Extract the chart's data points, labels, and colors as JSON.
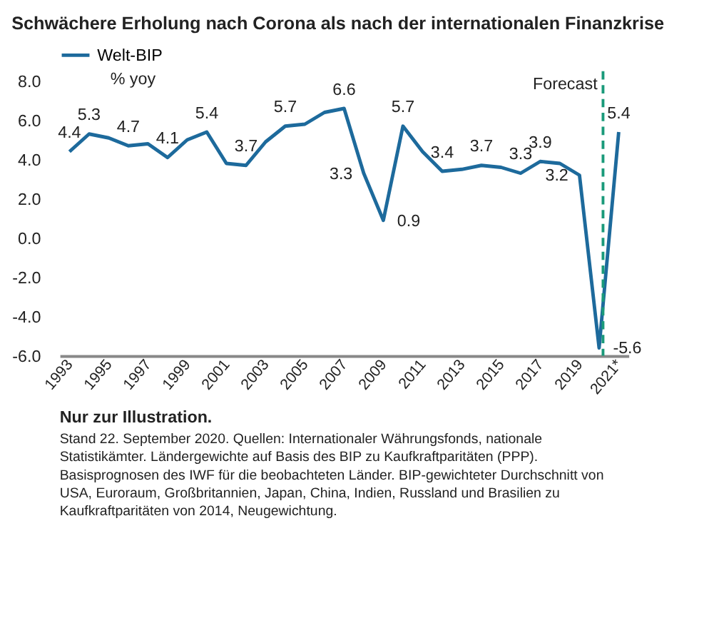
{
  "chart_data": {
    "type": "line",
    "title": "Schwächere Erholung nach Corona als nach der internationalen Finanzkrise",
    "ylabel": "% yoy",
    "x": [
      1993,
      1994,
      1995,
      1996,
      1997,
      1998,
      1999,
      2000,
      2001,
      2002,
      2003,
      2004,
      2005,
      2006,
      2007,
      2008,
      2009,
      2010,
      2011,
      2012,
      2013,
      2014,
      2015,
      2016,
      2017,
      2018,
      2019,
      2020,
      2021
    ],
    "series": [
      {
        "name": "Welt-BIP",
        "color": "#1d6a9c",
        "values": [
          4.4,
          5.3,
          5.1,
          4.7,
          4.8,
          4.1,
          5.0,
          5.4,
          3.8,
          3.7,
          4.9,
          5.7,
          5.8,
          6.4,
          6.6,
          3.3,
          0.9,
          5.7,
          4.4,
          3.4,
          3.5,
          3.7,
          3.6,
          3.3,
          3.9,
          3.8,
          3.2,
          -5.6,
          5.4
        ],
        "value_labels": [
          "4.4",
          "5.3",
          null,
          "4.7",
          null,
          "4.1",
          null,
          "5.4",
          null,
          "3.7",
          null,
          "5.7",
          null,
          null,
          "6.6",
          "3.3",
          "0.9",
          "5.7",
          null,
          "3.4",
          null,
          "3.7",
          null,
          "3.3",
          "3.9",
          null,
          "3.2",
          "-5.6",
          "5.4"
        ]
      }
    ],
    "xlim": [
      1992.5,
      2021.5
    ],
    "xticks": [
      1993,
      1995,
      1997,
      1999,
      2001,
      2003,
      2005,
      2007,
      2009,
      2011,
      2013,
      2015,
      2017,
      2019,
      {
        "value": 2021,
        "label": "2021*"
      }
    ],
    "ylim": [
      -6,
      8.5
    ],
    "yticks": [
      {
        "value": -6,
        "label": "-6.0"
      },
      {
        "value": -4,
        "label": "-4.0"
      },
      {
        "value": -2,
        "label": "-2.0"
      },
      {
        "value": 0,
        "label": "0.0"
      },
      {
        "value": 2,
        "label": "2.0"
      },
      {
        "value": 4,
        "label": "4.0"
      },
      {
        "value": 6,
        "label": "6.0"
      },
      {
        "value": 8,
        "label": "8.0"
      }
    ],
    "ref_lines": [
      {
        "axis": "x",
        "value": 2020.2,
        "label": "Forecast",
        "color": "#1a9a7a",
        "line_style": "dashed"
      }
    ],
    "grid": false,
    "legend": "top left",
    "marker": "none",
    "line_style": "solid",
    "annotations": [
      "Nur zur Illustration.",
      "Stand 22. September 2020. Quellen: Internationaler Währungsfonds, nationale Statistikämter. Ländergewichte auf Basis des BIP zu Kaufkraftparitäten (PPP). Basisprognosen des IWF für die beobachteten Länder. BIP-gewichteter Durchschnitt von USA, Euroraum, Großbritannien, Japan, China, Indien, Russland und Brasilien zu Kaufkraftparitäten von 2014, Neugewichtung."
    ]
  }
}
